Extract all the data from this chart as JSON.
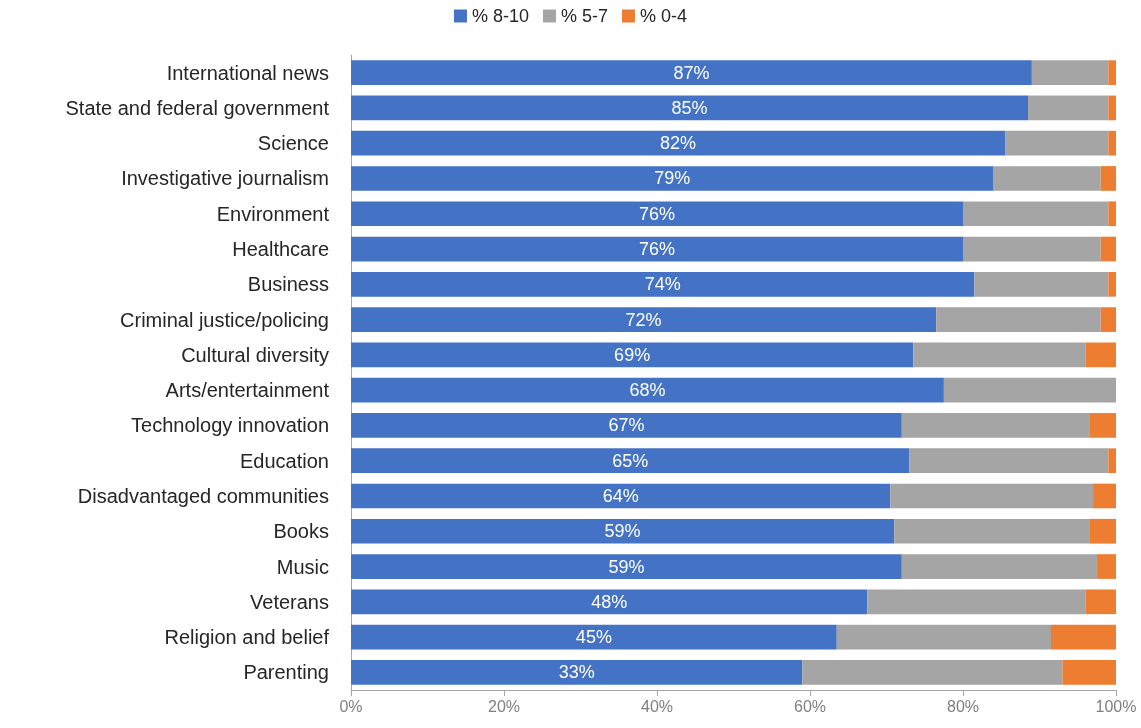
{
  "chart_data": {
    "type": "bar",
    "orientation": "horizontal",
    "stacked": true,
    "legend": "top",
    "grid": false,
    "categories": [
      "International news",
      "State and federal government",
      "Science",
      "Investigative journalism",
      "Environment",
      "Healthcare",
      "Business",
      "Criminal justice/policing",
      "Cultural diversity",
      "Arts/entertainment",
      "Technology innovation",
      "Education",
      "Disadvantaged communities",
      "Books",
      "Music",
      "Veterans",
      "Religion and belief",
      "Parenting"
    ],
    "annotations": [
      {
        "text": "87%",
        "y": "International news"
      },
      {
        "text": "85%",
        "y": "State and federal government"
      },
      {
        "text": "82%",
        "y": "Science"
      },
      {
        "text": "79%",
        "y": "Investigative journalism"
      },
      {
        "text": "76%",
        "y": "Environment"
      },
      {
        "text": "76%",
        "y": "Healthcare"
      },
      {
        "text": "74%",
        "y": "Business"
      },
      {
        "text": "72%",
        "y": "Criminal justice/policing"
      },
      {
        "text": "69%",
        "y": "Cultural diversity"
      },
      {
        "text": "68%",
        "y": "Arts/entertainment"
      },
      {
        "text": "67%",
        "y": "Technology innovation"
      },
      {
        "text": "65%",
        "y": "Education"
      },
      {
        "text": "64%",
        "y": "Disadvantaged communities"
      },
      {
        "text": "59%",
        "y": "Books"
      },
      {
        "text": "59%",
        "y": "Music"
      },
      {
        "text": "48%",
        "y": "Veterans"
      },
      {
        "text": "45%",
        "y": "Religion and belief"
      },
      {
        "text": "33%",
        "y": "Parenting"
      }
    ],
    "xlim": [
      0,
      100
    ],
    "xticks": [
      {
        "value": 0,
        "label": "0%"
      },
      {
        "value": 20,
        "label": "20%"
      },
      {
        "value": 40,
        "label": "40%"
      },
      {
        "value": 60,
        "label": "60%"
      },
      {
        "value": 80,
        "label": "80%"
      },
      {
        "value": 100,
        "label": "100%"
      }
    ],
    "series": [
      {
        "name": "% 8-10",
        "color": "#4472c4",
        "values": [
          89,
          88.5,
          85.5,
          84,
          80,
          80,
          81.5,
          76.5,
          73.5,
          77.5,
          72,
          73,
          70.5,
          71,
          72,
          67.5,
          63.5,
          59
        ]
      },
      {
        "name": "% 5-7",
        "color": "#a5a5a5",
        "values": [
          10,
          10.5,
          13.5,
          14,
          19,
          18,
          17.5,
          21.5,
          22.5,
          22.5,
          24.5,
          26,
          26.5,
          25.5,
          25.5,
          28.5,
          28,
          34
        ]
      },
      {
        "name": "% 0-4",
        "color": "#ed7d31",
        "values": [
          1,
          1,
          1,
          2,
          1,
          2,
          1,
          2,
          4,
          0,
          3.5,
          1,
          3,
          3.5,
          2.5,
          4,
          8.5,
          7
        ]
      }
    ]
  }
}
